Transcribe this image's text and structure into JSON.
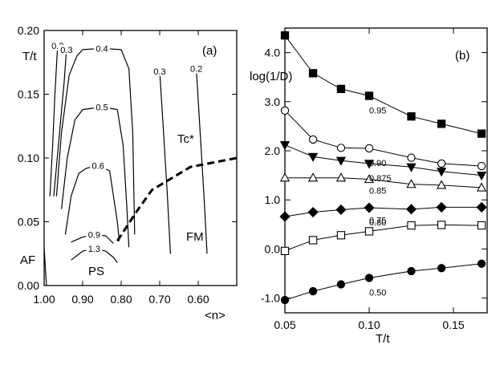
{
  "chart_data": [
    {
      "id": "a",
      "type": "line",
      "panel_label": "(a)",
      "xlabel": "<n>",
      "ylabel": "T/t",
      "xlim": [
        1.0,
        0.5
      ],
      "ylim": [
        0.0,
        0.2
      ],
      "x_ticks": [
        "1.00",
        "0.90",
        "0.80",
        "0.70",
        "0.60"
      ],
      "x_tick_values": [
        1.0,
        0.9,
        0.8,
        0.7,
        0.6
      ],
      "y_ticks": [
        "0.00",
        "0.05",
        "0.10",
        "0.15",
        "0.20"
      ],
      "y_tick_values": [
        0.0,
        0.05,
        0.1,
        0.15,
        0.2
      ],
      "region_labels": [
        "AF",
        "PS",
        "FM",
        "Tc*"
      ],
      "contours": [
        {
          "label": "0.2",
          "points": [
            [
              0.985,
              0.07
            ],
            [
              0.978,
              0.11
            ],
            [
              0.972,
              0.15
            ],
            [
              0.965,
              0.188
            ]
          ]
        },
        {
          "label": "0.3",
          "points": [
            [
              0.975,
              0.07
            ],
            [
              0.96,
              0.12
            ],
            [
              0.948,
              0.16
            ],
            [
              0.942,
              0.185
            ]
          ]
        },
        {
          "label": "0.4",
          "points": [
            [
              0.968,
              0.07
            ],
            [
              0.955,
              0.12
            ],
            [
              0.935,
              0.165
            ],
            [
              0.915,
              0.18
            ],
            [
              0.9,
              0.185
            ],
            [
              0.85,
              0.186
            ],
            [
              0.8,
              0.185
            ],
            [
              0.78,
              0.17
            ],
            [
              0.77,
              0.12
            ],
            [
              0.765,
              0.04
            ]
          ]
        },
        {
          "label": "0.5",
          "points": [
            [
              0.955,
              0.06
            ],
            [
              0.94,
              0.1
            ],
            [
              0.92,
              0.13
            ],
            [
              0.9,
              0.138
            ],
            [
              0.85,
              0.14
            ],
            [
              0.81,
              0.138
            ],
            [
              0.795,
              0.11
            ],
            [
              0.785,
              0.06
            ],
            [
              0.78,
              0.03
            ]
          ]
        },
        {
          "label": "0.6",
          "points": [
            [
              0.945,
              0.04
            ],
            [
              0.93,
              0.07
            ],
            [
              0.91,
              0.088
            ],
            [
              0.89,
              0.092
            ],
            [
              0.86,
              0.094
            ],
            [
              0.83,
              0.09
            ],
            [
              0.82,
              0.07
            ],
            [
              0.81,
              0.05
            ],
            [
              0.805,
              0.035
            ]
          ]
        },
        {
          "label": "0.9",
          "points": [
            [
              0.93,
              0.034
            ],
            [
              0.9,
              0.038
            ],
            [
              0.87,
              0.04
            ],
            [
              0.84,
              0.039
            ],
            [
              0.82,
              0.033
            ]
          ]
        },
        {
          "label": "1.3",
          "points": [
            [
              0.93,
              0.02
            ],
            [
              0.9,
              0.027
            ],
            [
              0.87,
              0.029
            ],
            [
              0.84,
              0.027
            ],
            [
              0.82,
              0.022
            ],
            [
              0.81,
              0.018
            ]
          ]
        },
        {
          "label": "0.3",
          "points": [
            [
              0.7,
              0.168
            ],
            [
              0.69,
              0.12
            ],
            [
              0.68,
              0.07
            ],
            [
              0.672,
              0.025
            ]
          ]
        },
        {
          "label": "0.2",
          "points": [
            [
              0.605,
              0.17
            ],
            [
              0.595,
              0.12
            ],
            [
              0.585,
              0.07
            ],
            [
              0.577,
              0.025
            ]
          ]
        }
      ],
      "AF_line": [
        [
          1.0,
          0.03
        ],
        [
          0.994,
          0.0
        ]
      ],
      "tc_line": {
        "label": "Tc*",
        "points": [
          [
            0.81,
            0.035
          ],
          [
            0.76,
            0.058
          ],
          [
            0.72,
            0.075
          ],
          [
            0.62,
            0.093
          ],
          [
            0.5,
            0.1
          ]
        ]
      }
    },
    {
      "id": "b",
      "type": "line",
      "panel_label": "(b)",
      "xlabel": "T/t",
      "ylabel": "log(1/D)",
      "xlim": [
        0.05,
        0.17
      ],
      "ylim": [
        -1.3,
        4.5
      ],
      "x_ticks": [
        "0.05",
        "0.10",
        "0.15"
      ],
      "x_tick_values": [
        0.05,
        0.1,
        0.15
      ],
      "y_ticks": [
        "-1.0",
        "0.0",
        "1.0",
        "2.0",
        "3.0",
        "4.0"
      ],
      "y_tick_values": [
        -1.0,
        0.0,
        1.0,
        2.0,
        3.0,
        4.0
      ],
      "x": [
        0.05,
        0.0667,
        0.0833,
        0.1,
        0.125,
        0.1429,
        0.1667
      ],
      "series": [
        {
          "name": "0.95",
          "marker": "square-filled",
          "values": [
            4.35,
            3.58,
            3.26,
            3.12,
            2.7,
            2.55,
            2.35
          ]
        },
        {
          "name": "0.90",
          "marker": "circle-open",
          "values": [
            2.82,
            2.23,
            2.06,
            2.05,
            1.86,
            1.74,
            1.69
          ]
        },
        {
          "name": "0.875",
          "marker": "triangle-down-filled",
          "values": [
            2.12,
            1.88,
            1.8,
            1.74,
            1.67,
            1.58,
            1.5
          ]
        },
        {
          "name": "0.85",
          "marker": "triangle-up-open",
          "values": [
            1.45,
            1.45,
            1.45,
            1.42,
            1.32,
            1.3,
            1.25
          ]
        },
        {
          "name": "0.80",
          "marker": "diamond-filled",
          "values": [
            0.66,
            0.75,
            0.8,
            0.84,
            0.81,
            0.85,
            0.85
          ]
        },
        {
          "name": "0.75",
          "marker": "square-open",
          "values": [
            -0.04,
            0.18,
            0.28,
            0.36,
            0.48,
            0.49,
            0.48
          ]
        },
        {
          "name": "0.50",
          "marker": "circle-filled",
          "values": [
            -1.04,
            -0.86,
            -0.72,
            -0.59,
            -0.45,
            -0.39,
            -0.3
          ]
        }
      ]
    }
  ]
}
